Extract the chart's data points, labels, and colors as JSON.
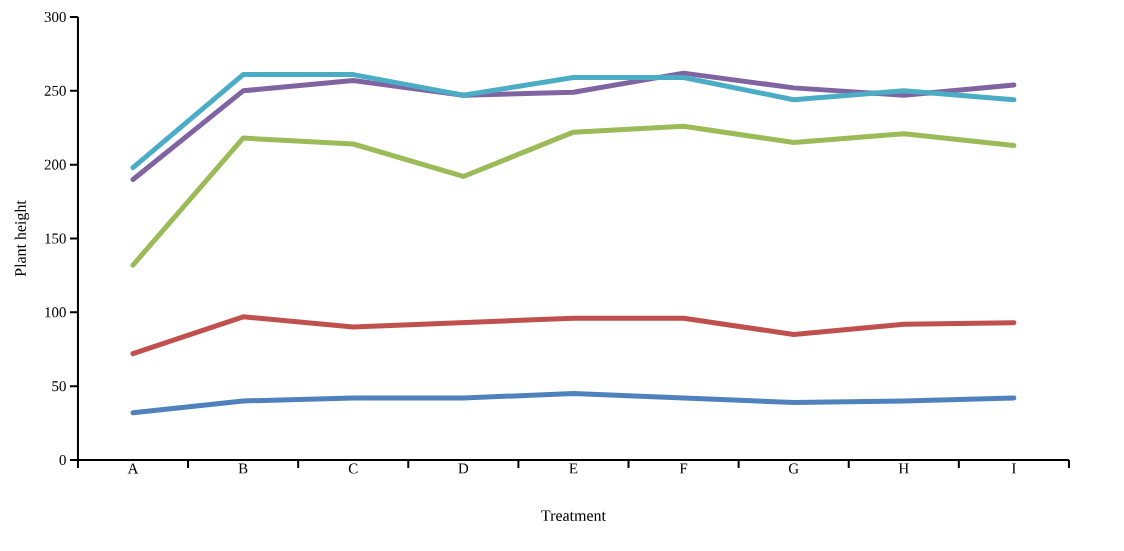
{
  "chart_data": {
    "type": "line",
    "xlabel": "Treatment",
    "ylabel": "Plant height",
    "categories": [
      "A",
      "B",
      "C",
      "D",
      "E",
      "F",
      "G",
      "H",
      "I"
    ],
    "series": [
      {
        "color": "#4f81bd",
        "values": [
          32,
          40,
          42,
          42,
          45,
          42,
          39,
          40,
          42
        ]
      },
      {
        "color": "#c0504d",
        "values": [
          72,
          97,
          90,
          93,
          96,
          96,
          85,
          92,
          93
        ]
      },
      {
        "color": "#9bbb59",
        "values": [
          132,
          218,
          214,
          192,
          222,
          226,
          215,
          221,
          213
        ]
      },
      {
        "color": "#8064a2",
        "values": [
          190,
          250,
          257,
          247,
          249,
          262,
          252,
          247,
          254
        ]
      },
      {
        "color": "#4bacc6",
        "values": [
          198,
          261,
          261,
          247,
          259,
          259,
          244,
          250,
          244
        ]
      }
    ],
    "ylim": [
      0,
      300
    ],
    "yticks": [
      0,
      50,
      100,
      150,
      200,
      250,
      300
    ],
    "grid": false
  }
}
